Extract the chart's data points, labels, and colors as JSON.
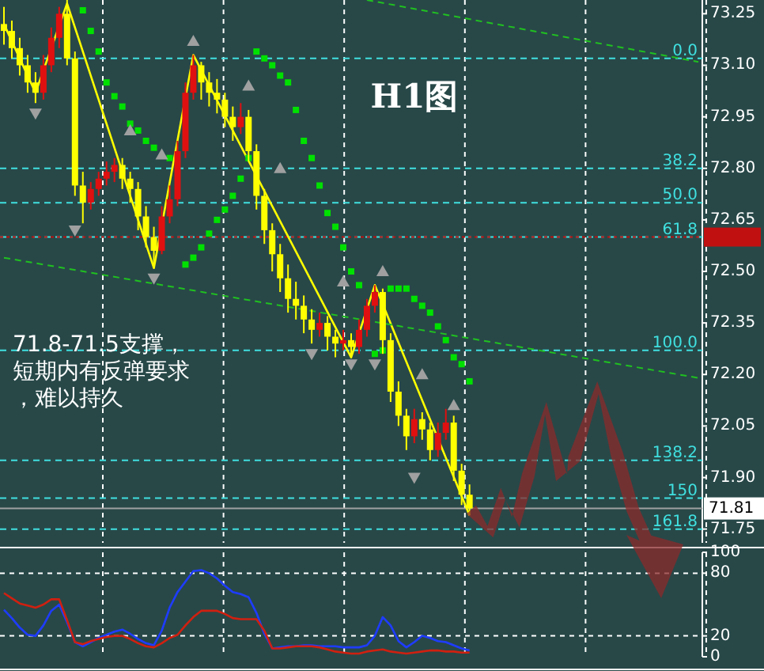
{
  "chart_data": [
    {
      "type": "candlestick",
      "title": "H1图",
      "categories": [
        null,
        null,
        null,
        null,
        null,
        null,
        null,
        null,
        null,
        null,
        null,
        null,
        null,
        null,
        null,
        null,
        null,
        null,
        null,
        null,
        null,
        null,
        null,
        null,
        null,
        null,
        null,
        null,
        null,
        null,
        null,
        null,
        null,
        null,
        null,
        null,
        null,
        null,
        null,
        null,
        null,
        null,
        null,
        null,
        null,
        null,
        null,
        null,
        null,
        null,
        null,
        null,
        null,
        null,
        null,
        null,
        null,
        null,
        null,
        null,
        null,
        null,
        null,
        null,
        null,
        null,
        null,
        null,
        null,
        null,
        null,
        null,
        null,
        null,
        null,
        null,
        null,
        null,
        null,
        null,
        null,
        null,
        null,
        null,
        null,
        null,
        null,
        null,
        null
      ],
      "ohlc": [
        [
          73.22,
          73.27,
          73.16,
          73.2
        ],
        [
          73.2,
          73.23,
          73.12,
          73.15
        ],
        [
          73.15,
          73.18,
          73.07,
          73.1
        ],
        [
          73.1,
          73.13,
          73.02,
          73.05
        ],
        [
          73.05,
          73.08,
          72.99,
          73.02
        ],
        [
          73.02,
          73.13,
          73.0,
          73.1
        ],
        [
          73.1,
          73.21,
          73.08,
          73.18
        ],
        [
          73.18,
          73.27,
          73.15,
          73.25
        ],
        [
          73.25,
          73.29,
          73.1,
          73.12
        ],
        [
          73.12,
          73.14,
          72.72,
          72.75
        ],
        [
          72.75,
          72.79,
          72.64,
          72.7
        ],
        [
          72.7,
          72.76,
          72.68,
          72.74
        ],
        [
          72.74,
          72.79,
          72.72,
          72.77
        ],
        [
          72.77,
          72.82,
          72.75,
          72.79
        ],
        [
          72.79,
          72.83,
          72.76,
          72.81
        ],
        [
          72.81,
          72.83,
          72.74,
          72.77
        ],
        [
          72.77,
          72.79,
          72.7,
          72.74
        ],
        [
          72.74,
          72.76,
          72.62,
          72.66
        ],
        [
          72.66,
          72.69,
          72.57,
          72.6
        ],
        [
          72.6,
          72.63,
          72.51,
          72.56
        ],
        [
          72.56,
          72.69,
          72.55,
          72.66
        ],
        [
          72.66,
          72.75,
          72.64,
          72.71
        ],
        [
          72.71,
          72.88,
          72.69,
          72.85
        ],
        [
          72.85,
          73.05,
          72.83,
          73.02
        ],
        [
          73.02,
          73.13,
          73.0,
          73.1
        ],
        [
          73.1,
          73.11,
          73.0,
          73.05
        ],
        [
          73.05,
          73.08,
          72.98,
          73.02
        ],
        [
          73.02,
          73.06,
          72.96,
          73.0
        ],
        [
          73.0,
          73.02,
          72.92,
          72.95
        ],
        [
          72.95,
          72.98,
          72.88,
          72.92
        ],
        [
          72.92,
          72.99,
          72.9,
          72.95
        ],
        [
          72.95,
          72.97,
          72.82,
          72.85
        ],
        [
          72.85,
          72.87,
          72.68,
          72.72
        ],
        [
          72.72,
          72.74,
          72.58,
          72.62
        ],
        [
          72.62,
          72.64,
          72.5,
          72.55
        ],
        [
          72.55,
          72.58,
          72.44,
          72.48
        ],
        [
          72.48,
          72.52,
          72.38,
          72.42
        ],
        [
          72.42,
          72.47,
          72.36,
          72.4
        ],
        [
          72.4,
          72.43,
          72.32,
          72.36
        ],
        [
          72.36,
          72.39,
          72.29,
          72.33
        ],
        [
          72.33,
          72.38,
          72.31,
          72.35
        ],
        [
          72.35,
          72.37,
          72.27,
          72.31
        ],
        [
          72.31,
          72.33,
          72.25,
          72.29
        ],
        [
          72.29,
          72.33,
          72.27,
          72.3
        ],
        [
          72.3,
          72.32,
          72.25,
          72.28
        ],
        [
          72.28,
          72.36,
          72.26,
          72.33
        ],
        [
          72.33,
          72.42,
          72.31,
          72.4
        ],
        [
          72.4,
          72.46,
          72.38,
          72.44
        ],
        [
          72.44,
          72.45,
          72.26,
          72.3
        ],
        [
          72.3,
          72.32,
          72.12,
          72.15
        ],
        [
          72.15,
          72.18,
          72.05,
          72.08
        ],
        [
          72.08,
          72.1,
          71.98,
          72.02
        ],
        [
          72.02,
          72.1,
          72.0,
          72.07
        ],
        [
          72.07,
          72.09,
          72.01,
          72.04
        ],
        [
          72.04,
          72.06,
          71.95,
          71.98
        ],
        [
          71.98,
          72.06,
          71.96,
          72.03
        ],
        [
          72.03,
          72.1,
          72.01,
          72.06
        ],
        [
          72.06,
          72.08,
          71.89,
          71.92
        ],
        [
          71.92,
          71.94,
          71.82,
          71.85
        ],
        [
          71.85,
          71.88,
          71.79,
          71.81
        ],
        null,
        null,
        null,
        null,
        null,
        null,
        null,
        null,
        null,
        null,
        null,
        null,
        null,
        null,
        null,
        null,
        null,
        null,
        null,
        null,
        null,
        null,
        null,
        null,
        null,
        null,
        null,
        null,
        null
      ],
      "colors": [
        "#ffff00",
        "#ffff00",
        "#ffff00",
        "#ffff00",
        "#ffff00",
        "#e01010",
        "#e01010",
        "#e01010",
        "#ffff00",
        "#ffff00",
        "#ffff00",
        "#e01010",
        "#e01010",
        "#e01010",
        "#e01010",
        "#ffff00",
        "#ffff00",
        "#ffff00",
        "#ffff00",
        "#ffff00",
        "#e01010",
        "#e01010",
        "#e01010",
        "#e01010",
        "#e01010",
        "#ffff00",
        "#ffff00",
        "#ffff00",
        "#ffff00",
        "#ffff00",
        "#e01010",
        "#ffff00",
        "#ffff00",
        "#ffff00",
        "#ffff00",
        "#ffff00",
        "#ffff00",
        "#ffff00",
        "#ffff00",
        "#ffff00",
        "#e01010",
        "#ffff00",
        "#ffff00",
        "#e01010",
        "#ffff00",
        "#e01010",
        "#e01010",
        "#e01010",
        "#ffff00",
        "#ffff00",
        "#ffff00",
        "#ffff00",
        "#e01010",
        "#ffff00",
        "#ffff00",
        "#e01010",
        "#e01010",
        "#ffff00",
        "#ffff00",
        "#ffff00",
        null,
        null,
        null,
        null,
        null,
        null,
        null,
        null,
        null,
        null,
        null,
        null,
        null,
        null,
        null,
        null,
        null,
        null,
        null,
        null,
        null,
        null,
        null,
        null,
        null,
        null,
        null,
        null,
        null
      ],
      "series": [
        {
          "type": "line",
          "color": "#ffff00",
          "values": [
            73.22,
            null,
            null,
            null,
            73.02,
            null,
            null,
            null,
            73.28,
            null,
            null,
            null,
            null,
            null,
            null,
            null,
            null,
            null,
            null,
            72.51,
            null,
            null,
            null,
            null,
            73.13,
            null,
            null,
            null,
            null,
            null,
            null,
            null,
            null,
            null,
            null,
            null,
            null,
            null,
            null,
            null,
            null,
            null,
            null,
            null,
            72.25,
            null,
            null,
            72.46,
            null,
            null,
            null,
            null,
            null,
            null,
            null,
            null,
            null,
            null,
            null,
            71.79,
            null,
            null,
            null,
            null,
            null,
            null,
            null,
            null,
            null,
            null,
            null,
            null,
            null,
            null,
            null,
            null,
            null,
            null,
            null,
            null,
            null,
            null,
            null,
            null,
            null,
            null,
            null,
            null,
            null
          ]
        },
        {
          "type": "scatter",
          "color": "#00e000",
          "marker": "square",
          "values": [
            null,
            null,
            null,
            null,
            null,
            null,
            null,
            null,
            null,
            null,
            73.26,
            73.2,
            73.14,
            73.05,
            73.01,
            72.98,
            72.93,
            72.91,
            72.88,
            72.86,
            null,
            72.83,
            null,
            72.52,
            72.54,
            72.57,
            72.61,
            72.65,
            72.68,
            72.72,
            72.77,
            72.83,
            73.14,
            73.12,
            73.1,
            73.07,
            73.05,
            72.97,
            72.88,
            72.83,
            72.75,
            72.67,
            72.63,
            72.57,
            72.5,
            72.46,
            null,
            72.26,
            72.27,
            72.45,
            72.45,
            72.45,
            72.42,
            72.4,
            72.38,
            72.34,
            72.3,
            72.25,
            72.23,
            72.18,
            null,
            null,
            null,
            null,
            null,
            null,
            null,
            null,
            null,
            null,
            null,
            null,
            null,
            null,
            null,
            null,
            null,
            null,
            null,
            null,
            null,
            null,
            null,
            null,
            null,
            null,
            null,
            null,
            null
          ]
        },
        {
          "type": "scatter",
          "color": "#a0a0a0",
          "marker": "triangle",
          "values": [
            null,
            null,
            null,
            null,
            null,
            null,
            null,
            null,
            null,
            null,
            null,
            null,
            null,
            null,
            null,
            null,
            72.91,
            null,
            null,
            null,
            72.84,
            null,
            null,
            null,
            73.17,
            null,
            null,
            null,
            null,
            null,
            null,
            73.04,
            null,
            null,
            null,
            72.8,
            null,
            null,
            null,
            null,
            null,
            null,
            null,
            72.47,
            null,
            null,
            null,
            null,
            72.5,
            null,
            null,
            null,
            null,
            72.2,
            null,
            null,
            null,
            72.11,
            null,
            null,
            null,
            null,
            null,
            null,
            null,
            null,
            null,
            null,
            null,
            null,
            null,
            null,
            null,
            null,
            null,
            null,
            null,
            null,
            null,
            null,
            null,
            null,
            null,
            null,
            null,
            null,
            null,
            null,
            null
          ]
        },
        {
          "type": "scatter",
          "color": "#a0a0a0",
          "marker": "triangle",
          "values": [
            null,
            null,
            null,
            null,
            72.96,
            null,
            null,
            null,
            null,
            72.62,
            null,
            null,
            null,
            null,
            null,
            null,
            null,
            null,
            null,
            72.48,
            null,
            null,
            null,
            null,
            null,
            null,
            null,
            null,
            null,
            null,
            null,
            null,
            null,
            null,
            null,
            null,
            null,
            null,
            null,
            72.26,
            null,
            null,
            null,
            null,
            72.23,
            null,
            null,
            72.23,
            null,
            null,
            null,
            null,
            71.9,
            null,
            null,
            null,
            null,
            null,
            null,
            null,
            null,
            null,
            null,
            null,
            null,
            null,
            null,
            null,
            null,
            null,
            null,
            null,
            null,
            null,
            null,
            null,
            null,
            null,
            null,
            null,
            null,
            null,
            null,
            null,
            null,
            null,
            null,
            null,
            null
          ]
        },
        {
          "type": "line",
          "color": "#20c020",
          "line_style": "dashed",
          "values": [
            null,
            null,
            null,
            null,
            null,
            null,
            null,
            null,
            null,
            null,
            null,
            null,
            null,
            null,
            null,
            null,
            null,
            null,
            null,
            null,
            null,
            null,
            null,
            null,
            null,
            null,
            null,
            null,
            null,
            null,
            null,
            null,
            null,
            null,
            null,
            null,
            null,
            null,
            null,
            null,
            null,
            null,
            null,
            null,
            null,
            null,
            73.29,
            null,
            null,
            null,
            null,
            null,
            null,
            null,
            null,
            null,
            null,
            null,
            null,
            null,
            null,
            null,
            null,
            null,
            null,
            null,
            null,
            null,
            null,
            null,
            null,
            null,
            null,
            null,
            null,
            null,
            null,
            null,
            null,
            null,
            null,
            null,
            null,
            null,
            null,
            null,
            null,
            null,
            73.11
          ]
        },
        {
          "type": "line",
          "color": "#20c020",
          "line_style": "dashed",
          "values": [
            72.54,
            null,
            null,
            null,
            null,
            null,
            null,
            null,
            null,
            null,
            null,
            null,
            null,
            null,
            null,
            null,
            null,
            null,
            null,
            null,
            null,
            null,
            null,
            null,
            null,
            null,
            null,
            null,
            null,
            null,
            null,
            null,
            null,
            null,
            null,
            null,
            null,
            null,
            null,
            null,
            null,
            null,
            null,
            null,
            null,
            null,
            null,
            null,
            null,
            null,
            null,
            null,
            null,
            null,
            null,
            null,
            null,
            null,
            null,
            null,
            null,
            null,
            null,
            null,
            null,
            null,
            null,
            null,
            null,
            null,
            null,
            null,
            null,
            null,
            null,
            null,
            null,
            null,
            null,
            null,
            null,
            null,
            null,
            null,
            null,
            null,
            null,
            null,
            72.19
          ]
        }
      ],
      "ylim": [
        71.71,
        73.29
      ],
      "yticks": [
        {
          "value": 73.25,
          "label": "73.25"
        },
        {
          "value": 73.1,
          "label": "73.10"
        },
        {
          "value": 72.95,
          "label": "72.95"
        },
        {
          "value": 72.8,
          "label": "72.80"
        },
        {
          "value": 72.65,
          "label": "72.65"
        },
        {
          "value": 72.5,
          "label": "72.50"
        },
        {
          "value": 72.35,
          "label": "72.35"
        },
        {
          "value": 72.2,
          "label": "72.20"
        },
        {
          "value": 72.05,
          "label": "72.05"
        },
        {
          "value": 71.9,
          "label": "71.90"
        },
        {
          "value": 71.75,
          "label": "71.75"
        }
      ],
      "grid": "x",
      "tick_labels": "y",
      "ref_lines": [
        {
          "axis": "y",
          "value": 73.12,
          "color": "#40e0e0",
          "line_style": "dashed"
        },
        {
          "axis": "y",
          "value": 72.8,
          "color": "#40e0e0",
          "line_style": "dashed"
        },
        {
          "axis": "y",
          "value": 72.7,
          "color": "#40e0e0",
          "line_style": "dashed"
        },
        {
          "axis": "y",
          "value": 72.6,
          "color": "#40e0e0",
          "line_style": "dashed"
        },
        {
          "axis": "y",
          "value": 72.27,
          "color": "#40e0e0",
          "line_style": "dashed"
        },
        {
          "axis": "y",
          "value": 71.95,
          "color": "#40e0e0",
          "line_style": "dashed"
        },
        {
          "axis": "y",
          "value": 71.84,
          "color": "#40e0e0",
          "line_style": "dashed"
        },
        {
          "axis": "y",
          "value": 71.75,
          "color": "#40e0e0",
          "line_style": "dashed"
        },
        {
          "axis": "y",
          "value": 72.6,
          "color": "#c01010",
          "line_style": "dotted"
        },
        {
          "axis": "y",
          "value": 71.81,
          "label": "71.81",
          "color": "#a0a0a0",
          "line_style": "solid"
        }
      ],
      "annotations": [
        "71.8-71.5支撑，短期内有反弹要求，难以持久",
        {
          "text": "0.0",
          "y": 73.12
        },
        {
          "text": "38.2",
          "y": 72.8
        },
        {
          "text": "50.0",
          "y": 72.7
        },
        {
          "text": "61.8",
          "y": 72.6
        },
        {
          "text": "100.0",
          "y": 72.27
        },
        {
          "text": "138.2",
          "y": 71.95
        },
        {
          "text": "150",
          "y": 71.84
        },
        {
          "text": "161.8",
          "y": 71.75
        }
      ]
    },
    {
      "type": "line",
      "categories": [
        null,
        null,
        null,
        null,
        null,
        null,
        null,
        null,
        null,
        null,
        null,
        null,
        null,
        null,
        null,
        null,
        null,
        null,
        null,
        null,
        null,
        null,
        null,
        null,
        null,
        null,
        null,
        null,
        null,
        null,
        null,
        null,
        null,
        null,
        null,
        null,
        null,
        null,
        null,
        null,
        null,
        null,
        null,
        null,
        null,
        null,
        null,
        null,
        null,
        null,
        null,
        null,
        null,
        null,
        null,
        null,
        null,
        null,
        null,
        null,
        null,
        null,
        null,
        null,
        null,
        null,
        null,
        null,
        null,
        null,
        null,
        null,
        null,
        null,
        null,
        null,
        null,
        null,
        null,
        null,
        null,
        null,
        null,
        null,
        null,
        null,
        null,
        null,
        null
      ],
      "series": [
        {
          "color": "#1e3cff",
          "values": [
            45,
            37,
            28,
            21,
            20,
            30,
            44,
            50,
            33,
            14,
            10,
            14,
            18,
            21,
            24,
            26,
            22,
            17,
            13,
            11,
            25,
            47,
            62,
            72,
            82,
            83,
            80,
            75,
            68,
            62,
            60,
            57,
            42,
            22,
            8,
            9,
            10,
            10,
            11,
            11,
            10,
            10,
            10,
            9,
            9,
            9,
            11,
            20,
            38,
            30,
            15,
            9,
            14,
            20,
            18,
            15,
            14,
            11,
            8,
            6,
            null,
            null,
            null,
            null,
            null,
            null,
            null,
            null,
            null,
            null,
            null,
            null,
            null,
            null,
            null,
            null,
            null,
            null,
            null,
            null,
            null,
            null,
            null,
            null,
            null,
            null,
            null,
            null,
            null
          ]
        },
        {
          "color": "#d02010",
          "values": [
            61,
            56,
            51,
            49,
            47,
            50,
            55,
            55,
            35,
            14,
            12,
            15,
            17,
            19,
            20,
            20,
            17,
            13,
            10,
            9,
            13,
            18,
            21,
            30,
            38,
            44,
            44,
            44,
            41,
            37,
            36,
            36,
            36,
            25,
            8,
            8,
            9,
            10,
            10,
            10,
            9,
            7,
            5,
            4,
            3,
            3,
            5,
            6,
            7,
            5,
            4,
            3,
            4,
            5,
            6,
            6,
            5,
            5,
            4,
            4,
            null,
            null,
            null,
            null,
            null,
            null,
            null,
            null,
            null,
            null,
            null,
            null,
            null,
            null,
            null,
            null,
            null,
            null,
            null,
            null,
            null,
            null,
            null,
            null,
            null,
            null,
            null,
            null,
            null
          ]
        }
      ],
      "ylim": [
        0,
        100
      ],
      "yticks": [
        100,
        80,
        20,
        0
      ],
      "grid": true,
      "tick_labels": "y"
    }
  ]
}
